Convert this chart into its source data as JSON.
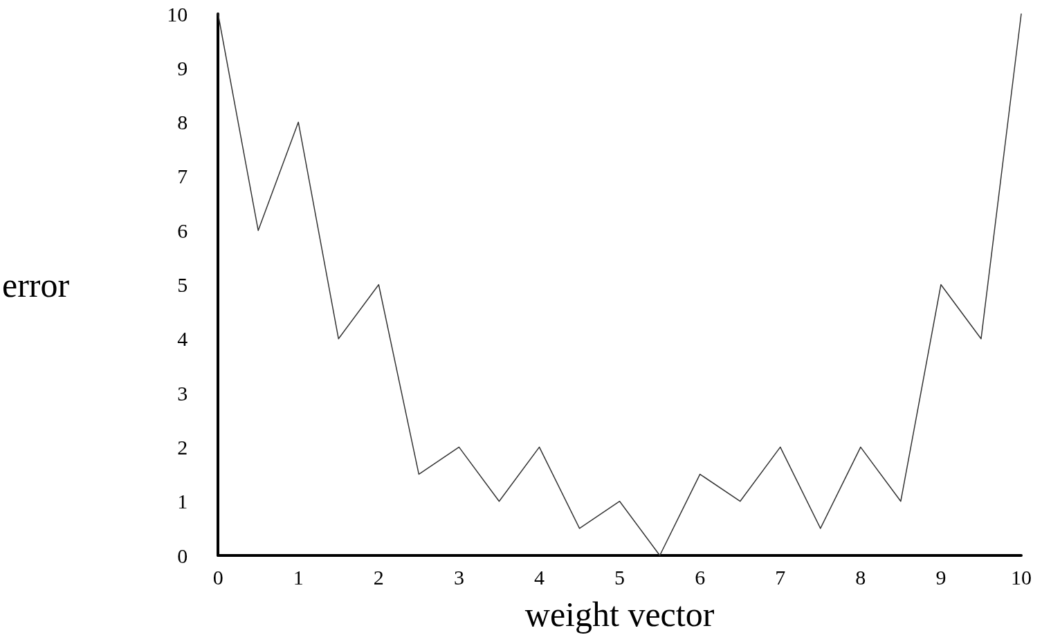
{
  "chart_data": {
    "type": "line",
    "xlabel": "weight vector",
    "ylabel": "error",
    "x": [
      0,
      0.5,
      1,
      1.5,
      2,
      2.5,
      3,
      3.5,
      4,
      4.5,
      5,
      5.5,
      6,
      6.5,
      7,
      7.5,
      8,
      8.5,
      9,
      9.5,
      10
    ],
    "series": [
      {
        "color": "#333333",
        "values": [
          10,
          6,
          8,
          4,
          5,
          1.5,
          2,
          1,
          2,
          0.5,
          1,
          0,
          1.5,
          1,
          2,
          0.5,
          2,
          1,
          5,
          4,
          10
        ]
      }
    ],
    "xlim": [
      0,
      10
    ],
    "xticks": [
      0,
      1,
      2,
      3,
      4,
      5,
      6,
      7,
      8,
      9,
      10
    ],
    "ylim": [
      0,
      10
    ],
    "yticks": [
      0,
      1,
      2,
      3,
      4,
      5,
      6,
      7,
      8,
      9,
      10
    ],
    "grid": false,
    "marker": "none",
    "line_style": "solid"
  }
}
